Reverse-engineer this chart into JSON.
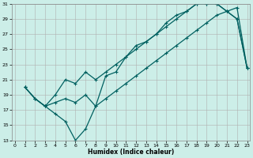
{
  "xlabel": "Humidex (Indice chaleur)",
  "bg_color": "#cceee8",
  "grid_color": "#b0b0b0",
  "line_color": "#006060",
  "xlim": [
    0,
    23
  ],
  "ylim": [
    13,
    31
  ],
  "xticks": [
    0,
    1,
    2,
    3,
    4,
    5,
    6,
    7,
    8,
    9,
    10,
    11,
    12,
    13,
    14,
    15,
    16,
    17,
    18,
    19,
    20,
    21,
    22,
    23
  ],
  "yticks": [
    13,
    15,
    17,
    19,
    21,
    23,
    25,
    27,
    29,
    31
  ],
  "line1_x": [
    1,
    2,
    3,
    4,
    5,
    6,
    7,
    8,
    9,
    10,
    11,
    12,
    13,
    14,
    15,
    16,
    17,
    18,
    19,
    20,
    21,
    22,
    23
  ],
  "line1_y": [
    20,
    18.5,
    17.5,
    16.5,
    15.5,
    13,
    14.5,
    17.5,
    21.5,
    22,
    24,
    25.5,
    26,
    27,
    28.5,
    29.5,
    30,
    31,
    31,
    31,
    30,
    29,
    22.5
  ],
  "line2_x": [
    1,
    2,
    3,
    4,
    5,
    6,
    7,
    8,
    9,
    10,
    11,
    12,
    13,
    14,
    15,
    16,
    17,
    18,
    19,
    20,
    21,
    22,
    23
  ],
  "line2_y": [
    20,
    18.5,
    17.5,
    19,
    21,
    20.5,
    22,
    21,
    22,
    23,
    24,
    25,
    26,
    27,
    28,
    29,
    30,
    31,
    31,
    31,
    30,
    29,
    22.5
  ],
  "line3_x": [
    1,
    2,
    3,
    4,
    5,
    6,
    7,
    8,
    9,
    10,
    11,
    12,
    13,
    14,
    15,
    16,
    17,
    18,
    19,
    20,
    21,
    22,
    23
  ],
  "line3_y": [
    20,
    18.5,
    17.5,
    18,
    18.5,
    18,
    19,
    17.5,
    18.5,
    19.5,
    20.5,
    21.5,
    22.5,
    23.5,
    24.5,
    25.5,
    26.5,
    27.5,
    28.5,
    29.5,
    30,
    30.5,
    22.5
  ]
}
